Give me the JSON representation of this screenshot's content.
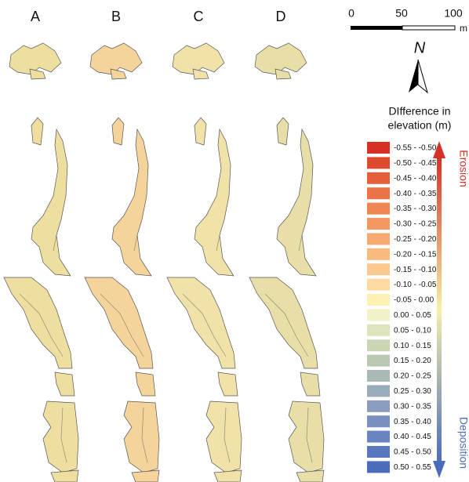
{
  "panels": [
    "A",
    "B",
    "C",
    "D"
  ],
  "scale_bar": {
    "labels": [
      "0",
      "50",
      "100"
    ],
    "unit": "m"
  },
  "north": "N",
  "legend": {
    "title": [
      "DIfference in",
      "elevation (m)"
    ],
    "items": [
      {
        "label": "-0.55 - -0.50",
        "color": "#d73027"
      },
      {
        "label": "-0.50 - -0.45",
        "color": "#de4a2e"
      },
      {
        "label": "-0.45 - -0.40",
        "color": "#e4603a"
      },
      {
        "label": "-0.40 - -0.35",
        "color": "#ea7446"
      },
      {
        "label": "-0.35 - -0.30",
        "color": "#ef8553"
      },
      {
        "label": "-0.30 - -0.25",
        "color": "#f39862"
      },
      {
        "label": "-0.25 - -0.20",
        "color": "#f6a970"
      },
      {
        "label": "-0.20 - -0.15",
        "color": "#f9ba80"
      },
      {
        "label": "-0.15 - -0.10",
        "color": "#fbca8f"
      },
      {
        "label": "-0.10 - -0.05",
        "color": "#fdda9f"
      },
      {
        "label": "-0.05 - 0.00",
        "color": "#fef1b5"
      },
      {
        "label": "0.00 - 0.05",
        "color": "#f2f2c8"
      },
      {
        "label": "0.05 - 0.10",
        "color": "#dde3bc"
      },
      {
        "label": "0.10 - 0.15",
        "color": "#cbd6b5"
      },
      {
        "label": "0.15 - 0.20",
        "color": "#bac9b3"
      },
      {
        "label": "0.20 - 0.25",
        "color": "#a9b9b5"
      },
      {
        "label": "0.25 - 0.30",
        "color": "#9aabbb"
      },
      {
        "label": "0.30 - 0.35",
        "color": "#8a9dbe"
      },
      {
        "label": "0.35 - 0.40",
        "color": "#7a90c0"
      },
      {
        "label": "0.40 - 0.45",
        "color": "#6a84c1"
      },
      {
        "label": "0.45 - 0.50",
        "color": "#5a78c0"
      },
      {
        "label": "0.50 - 0.55",
        "color": "#4a6cbd"
      }
    ]
  },
  "arrow_labels": {
    "top": "Erosion",
    "bottom": "Deposition"
  }
}
